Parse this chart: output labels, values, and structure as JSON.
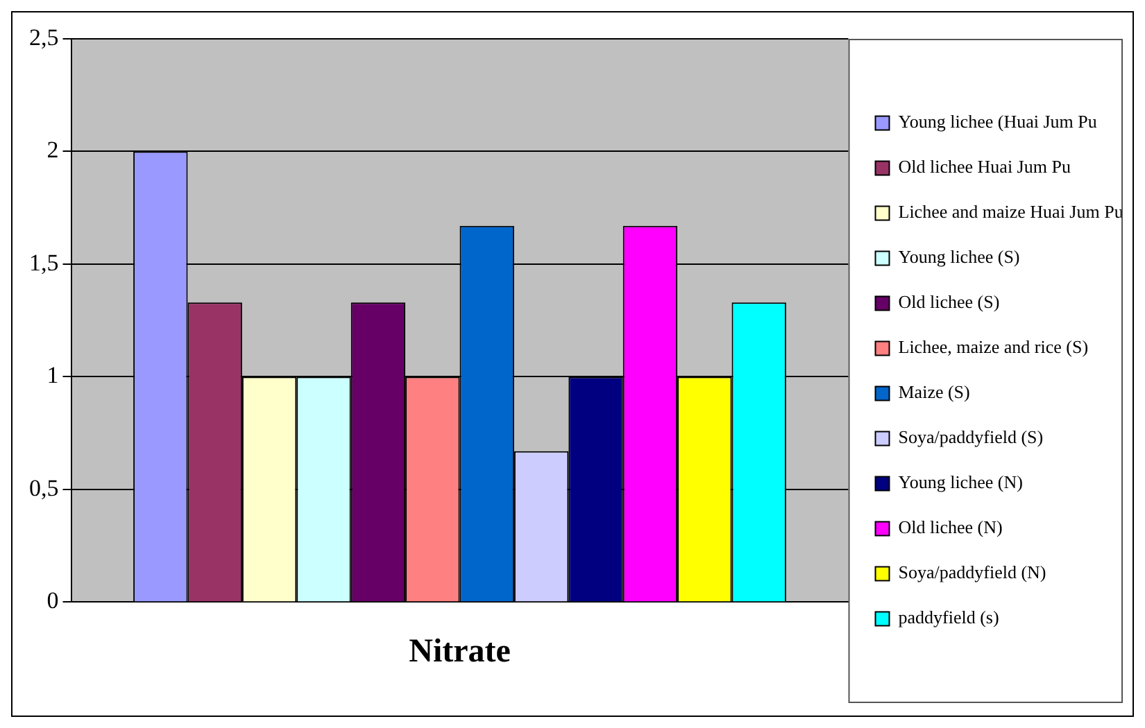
{
  "chart_data": {
    "type": "bar",
    "categories": [
      "Nitrate"
    ],
    "series": [
      {
        "name": "Young lichee (Huai Jum Pu",
        "color": "#9999ff",
        "values": [
          2
        ]
      },
      {
        "name": "Old lichee Huai Jum Pu",
        "color": "#993366",
        "values": [
          1.33
        ]
      },
      {
        "name": "Lichee and maize Huai Jum Pu",
        "color": "#ffffcc",
        "values": [
          1
        ]
      },
      {
        "name": "Young lichee (S)",
        "color": "#ccffff",
        "values": [
          1
        ]
      },
      {
        "name": "Old lichee (S)",
        "color": "#660066",
        "values": [
          1.33
        ]
      },
      {
        "name": "Lichee, maize and rice (S)",
        "color": "#ff8080",
        "values": [
          1
        ]
      },
      {
        "name": "Maize (S)",
        "color": "#0066cc",
        "values": [
          1.67
        ]
      },
      {
        "name": "Soya/paddyfield (S)",
        "color": "#ccccff",
        "values": [
          0.67
        ]
      },
      {
        "name": "Young lichee (N)",
        "color": "#000080",
        "values": [
          1
        ]
      },
      {
        "name": "Old lichee (N)",
        "color": "#ff00ff",
        "values": [
          1.67
        ]
      },
      {
        "name": "Soya/paddyfield (N)",
        "color": "#ffff00",
        "values": [
          1
        ]
      },
      {
        "name": "paddyfield (s)",
        "color": "#00ffff",
        "values": [
          1.33
        ]
      }
    ],
    "ylim": [
      0,
      2.5
    ],
    "yticks": [
      0,
      {
        "value": 0.5,
        "label": "0,5"
      },
      1,
      {
        "value": 1.5,
        "label": "1,5"
      },
      2,
      {
        "value": 2.5,
        "label": "2,5"
      }
    ],
    "grid": "y",
    "legend": "right"
  }
}
